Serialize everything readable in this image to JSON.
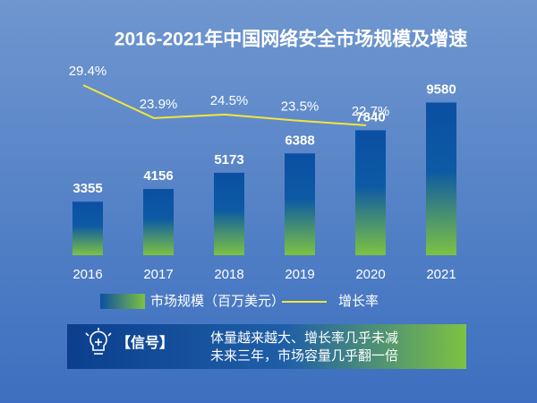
{
  "chart_data": {
    "type": "bar-line",
    "title": "2016-2021年中国网络安全市场规模及增速",
    "categories": [
      "2016",
      "2017",
      "2018",
      "2019",
      "2020",
      "2021"
    ],
    "series": [
      {
        "name": "市场规模（百万美元）",
        "type": "bar",
        "color": "#0b4fa3",
        "values": [
          3355,
          4156,
          5173,
          6388,
          7840,
          9580
        ]
      },
      {
        "name": "增长率",
        "type": "line",
        "color": "#f2e63a",
        "values": [
          29.4,
          23.9,
          24.5,
          23.5,
          22.7,
          null
        ],
        "value_labels": [
          "29.4%",
          "23.9%",
          "24.5%",
          "23.5%",
          "22.7%",
          null
        ]
      }
    ]
  },
  "callout": {
    "label": "【信号】",
    "lines": [
      "体量越来越大、增长率几乎未减",
      "未来三年，市场容量几乎翻一倍"
    ]
  }
}
